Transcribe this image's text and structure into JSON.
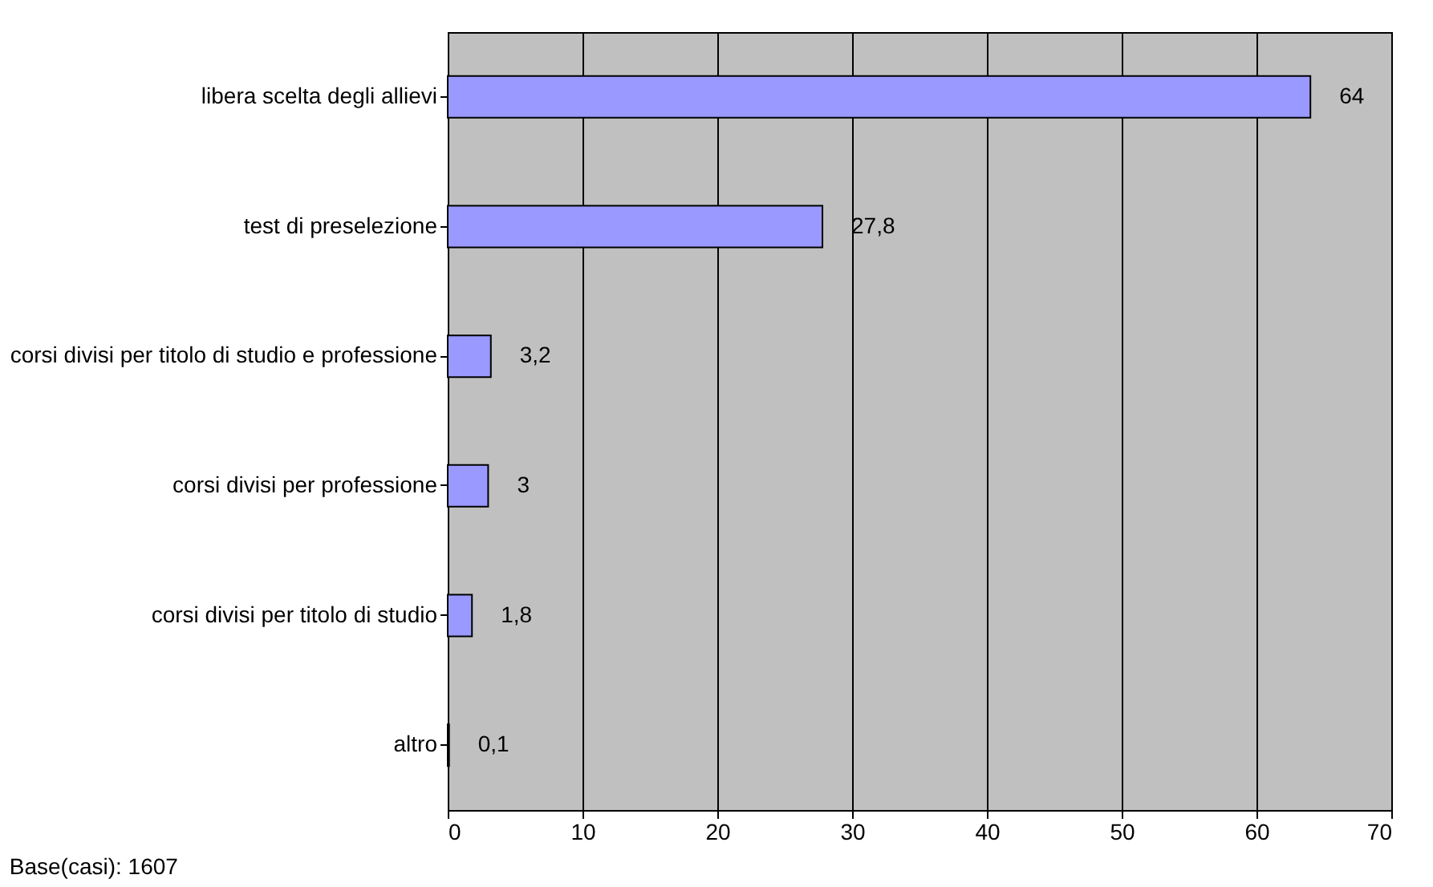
{
  "chart_data": {
    "type": "bar",
    "orientation": "horizontal",
    "categories": [
      "libera scelta degli allievi",
      "test di preselezione",
      "corsi divisi per titolo di studio e professione",
      "corsi divisi per professione",
      "corsi divisi per titolo di studio",
      "altro"
    ],
    "values": [
      64,
      27.8,
      3.2,
      3,
      1.8,
      0.1
    ],
    "colors": [
      "#9999ff",
      "#9999ff",
      "#9999ff",
      "#9999ff",
      "#9999ff",
      "#4d4d99"
    ],
    "value_labels": [
      "64",
      "27,8",
      "3,2",
      "3",
      "1,8",
      "0,1"
    ],
    "xlim": [
      0,
      70
    ],
    "xticks": [
      0,
      10,
      20,
      30,
      40,
      50,
      60,
      70
    ],
    "grid": "x",
    "annotations": [
      "Base(casi): 1607"
    ]
  }
}
